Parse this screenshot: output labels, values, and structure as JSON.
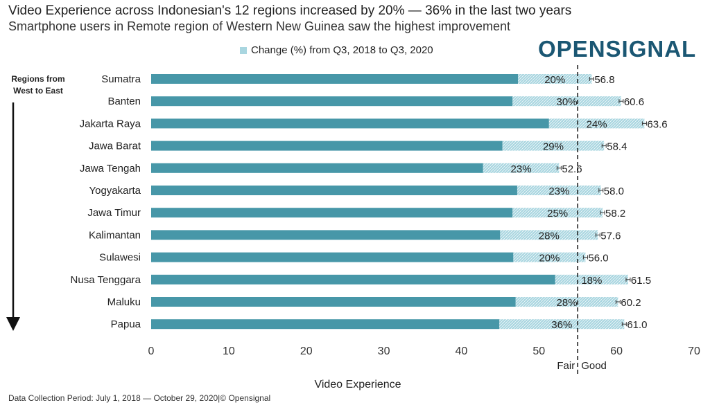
{
  "title": "Video Experience across Indonesian's 12 regions increased by 20% — 36% in the last two years",
  "subtitle": "Smartphone users in Remote region of Western New Guinea saw the highest improvement",
  "logo": "OPENSIGNAL",
  "regions_note": "Regions from West to East",
  "footer": "Data Collection Period: July 1, 2018 — October 29, 2020|© Opensignal",
  "colors": {
    "base_bar": "#4797a8",
    "change_bar": "#a9d6e0",
    "logo": "#1b5773"
  },
  "chart_data": {
    "type": "bar",
    "orientation": "horizontal",
    "stacked": true,
    "categories": [
      "Sumatra",
      "Banten",
      "Jakarta Raya",
      "Jawa Barat",
      "Jawa Tengah",
      "Yogyakarta",
      "Jawa Timur",
      "Kalimantan",
      "Sulawesi",
      "Nusa Tenggara",
      "Maluku",
      "Papua"
    ],
    "series": [
      {
        "name": "",
        "values": [
          47.3,
          46.6,
          51.3,
          45.3,
          42.8,
          47.2,
          46.6,
          45.0,
          46.7,
          52.1,
          47.0,
          44.9
        ]
      },
      {
        "name": "Change (%) from Q3, 2018 to Q3, 2020",
        "values": [
          9.5,
          14.0,
          12.3,
          13.1,
          9.8,
          10.8,
          11.6,
          12.6,
          9.3,
          9.4,
          13.2,
          16.1
        ]
      }
    ],
    "totals": [
      56.8,
      60.6,
      63.6,
      58.4,
      52.6,
      58.0,
      58.2,
      57.6,
      56.0,
      61.5,
      60.2,
      61.0
    ],
    "total_labels": [
      "56.8",
      "60.6",
      "63.6",
      "58.4",
      "52.6",
      "58.0",
      "58.2",
      "57.6",
      "56.0",
      "61.5",
      "60.2",
      "61.0"
    ],
    "change_labels": [
      "20%",
      "30%",
      "24%",
      "29%",
      "23%",
      "23%",
      "25%",
      "28%",
      "20%",
      "18%",
      "28%",
      "36%"
    ],
    "xlabel": "Video Experience",
    "xlim": [
      0,
      70
    ],
    "xticks": [
      "0",
      "10",
      "20",
      "30",
      "40",
      "50",
      "60",
      "70"
    ],
    "threshold": {
      "value": 55,
      "left_label": "Fair",
      "right_label": "Good"
    },
    "error_bars": true,
    "legend_position": "top-center",
    "grid": false
  }
}
